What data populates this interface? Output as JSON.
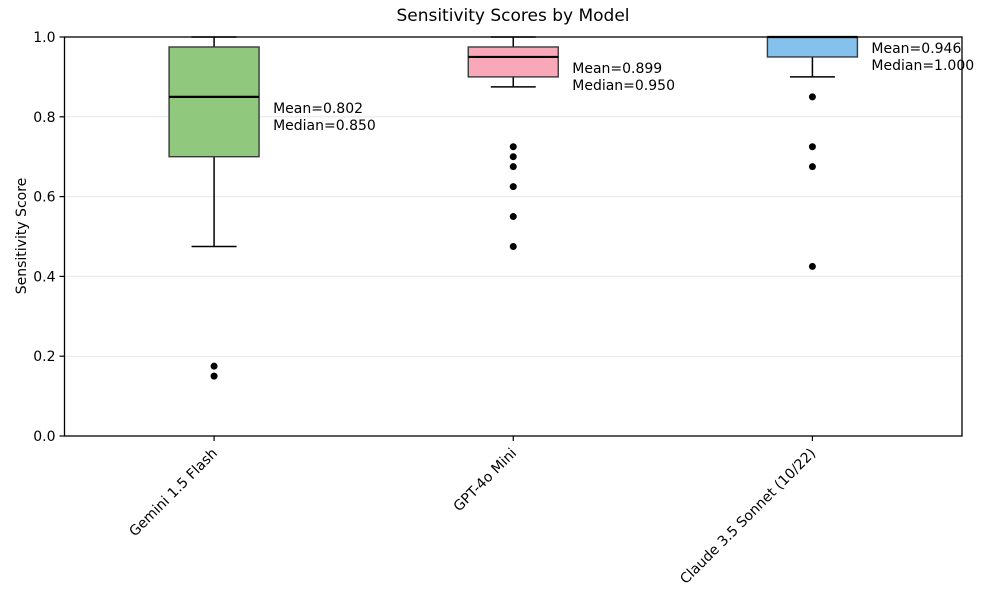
{
  "chart_data": {
    "type": "box",
    "title": "Sensitivity Scores by Model",
    "ylabel": "Sensitivity Score",
    "xlabel": "",
    "ylim": [
      0.0,
      1.0
    ],
    "yticks": [
      0.0,
      0.2,
      0.4,
      0.6,
      0.8,
      1.0
    ],
    "ytick_labels": [
      "0.0",
      "0.2",
      "0.4",
      "0.6",
      "0.8",
      "1.0"
    ],
    "grid": "horizontal",
    "legend": "none",
    "colors": {
      "box_edge": "#3a3a3a",
      "median": "#000000",
      "whisker": "#000000",
      "outlier": "#000000",
      "gridline": "#e7e7e7",
      "spine": "#000000",
      "text": "#000000"
    },
    "series": [
      {
        "label": "Gemini 1.5 Flash",
        "color": "#90c87d",
        "whisker_low": 0.475,
        "q1": 0.7,
        "median": 0.85,
        "q3": 0.975,
        "whisker_high": 1.0,
        "outliers": [
          0.175,
          0.15
        ],
        "mean": 0.802,
        "annotation_lines": [
          "Mean=0.802",
          "Median=0.850"
        ]
      },
      {
        "label": "GPT-4o Mini",
        "color": "#f9a8ba",
        "whisker_low": 0.875,
        "q1": 0.9,
        "median": 0.95,
        "q3": 0.975,
        "whisker_high": 1.0,
        "outliers": [
          0.725,
          0.7,
          0.675,
          0.625,
          0.55,
          0.475
        ],
        "mean": 0.899,
        "annotation_lines": [
          "Mean=0.899",
          "Median=0.950"
        ]
      },
      {
        "label": "Claude 3.5 Sonnet (10/22)",
        "color": "#85c1ed",
        "whisker_low": 0.9,
        "q1": 0.95,
        "median": 1.0,
        "q3": 1.0,
        "whisker_high": 1.0,
        "outliers": [
          0.85,
          0.725,
          0.675,
          0.425
        ],
        "mean": 0.946,
        "annotation_lines": [
          "Mean=0.946",
          "Median=1.000"
        ]
      }
    ]
  }
}
